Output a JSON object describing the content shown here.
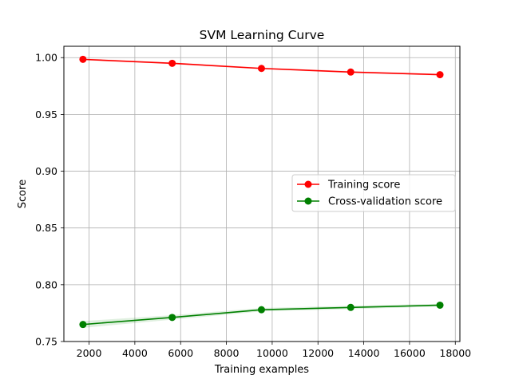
{
  "chart_data": {
    "type": "line",
    "title": "SVM Learning Curve",
    "xlabel": "Training examples",
    "ylabel": "Score",
    "xlim": [
      900,
      18200
    ],
    "ylim": [
      0.75,
      1.01
    ],
    "xticks": [
      2000,
      4000,
      6000,
      8000,
      10000,
      12000,
      14000,
      16000,
      18000
    ],
    "yticks": [
      0.75,
      0.8,
      0.85,
      0.9,
      0.95,
      1.0
    ],
    "xtick_labels": [
      "2000",
      "4000",
      "6000",
      "8000",
      "10000",
      "12000",
      "14000",
      "16000",
      "18000"
    ],
    "ytick_labels": [
      "0.75",
      "0.80",
      "0.85",
      "0.90",
      "0.95",
      "1.00"
    ],
    "grid": true,
    "legend_position": "center-right",
    "x": [
      1733,
      5632,
      9531,
      13430,
      17329
    ],
    "series": [
      {
        "name": "Training score",
        "color": "#ff0000",
        "fill_color": "#ff0000",
        "values": [
          0.9985,
          0.995,
          0.9905,
          0.9873,
          0.985
        ],
        "band": [
          0.0008,
          0.0008,
          0.0008,
          0.0008,
          0.0008
        ]
      },
      {
        "name": "Cross-validation score",
        "color": "#008000",
        "fill_color": "#008000",
        "values": [
          0.765,
          0.7712,
          0.778,
          0.78,
          0.782
        ],
        "band": [
          0.003,
          0.002,
          0.0015,
          0.0015,
          0.0012
        ]
      }
    ]
  }
}
